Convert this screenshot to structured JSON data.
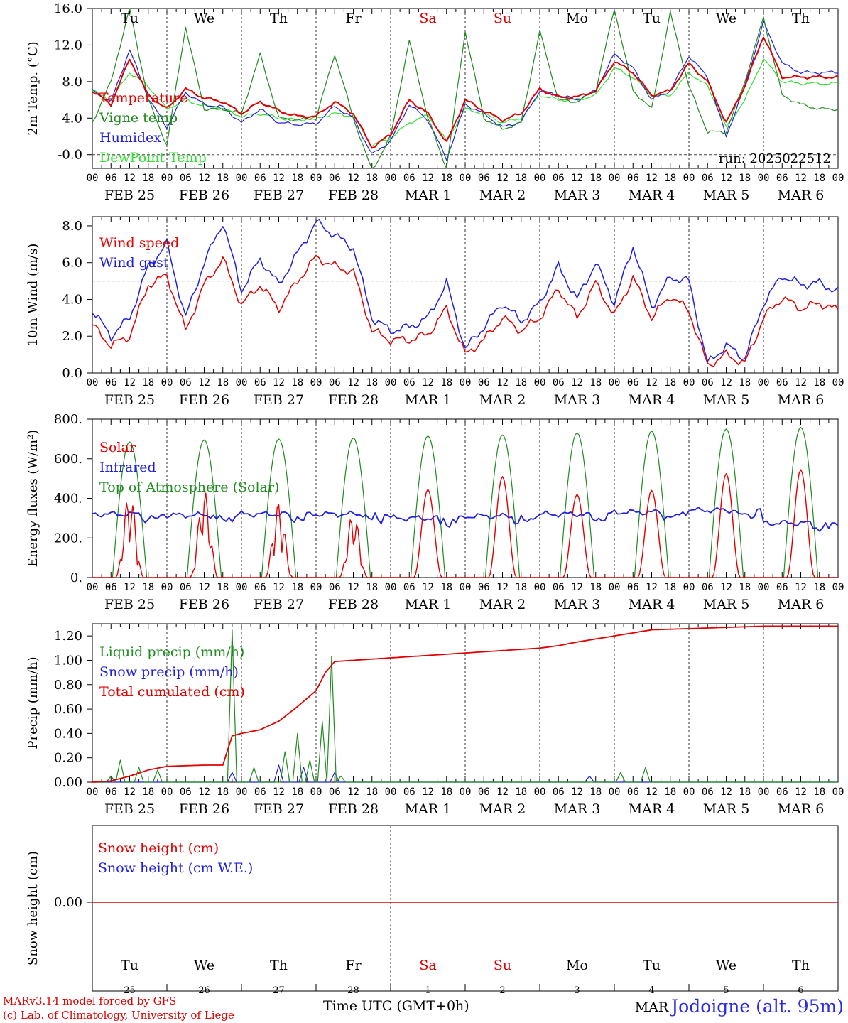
{
  "footer": {
    "model_line": "MARv3.14 model forced by GFS",
    "credit_line": "(c) Lab. of Climatology, University of Liege",
    "time_axis_label": "Time UTC (GMT+0h)",
    "location": "Jodoigne (alt. 95m)",
    "month_overlay": "MAR"
  },
  "run_label": "run: 2025022512",
  "colors": {
    "red": "#e00000",
    "green": "#1f8a1f",
    "blue": "#2020e0",
    "lime": "#33e033",
    "weekend": "#e00000"
  },
  "days": {
    "weekdays": [
      "Tu",
      "We",
      "Th",
      "Fr",
      "Sa",
      "Su",
      "Mo",
      "Tu",
      "We",
      "Th"
    ],
    "weekend_index": [
      4,
      5
    ],
    "dates": [
      "FEB  25",
      "FEB  26",
      "FEB  27",
      "FEB  28",
      "MAR   1",
      "MAR   2",
      "MAR   3",
      "MAR   4",
      "MAR   5",
      "MAR   6"
    ],
    "day_numbers": [
      "25",
      "26",
      "27",
      "28",
      "1",
      "2",
      "3",
      "4",
      "5",
      "6"
    ],
    "hour_ticks": [
      "00",
      "06",
      "12",
      "18"
    ],
    "final_tick": "00"
  },
  "chart_data": [
    {
      "type": "line",
      "ylabel": "2m Temp. (°C)",
      "ylim": [
        -1.5,
        16.0
      ],
      "yticks": [
        "-0.0",
        "4.0",
        "8.0",
        "12.0",
        "16.0"
      ],
      "ytick_values": [
        0,
        4,
        8,
        12,
        16
      ],
      "ref_line": 0,
      "x_hours": [
        0,
        6,
        12,
        18,
        24,
        30,
        36,
        42,
        48,
        54,
        60,
        66,
        72,
        78,
        84,
        90,
        96,
        102,
        108,
        114,
        120,
        126,
        132,
        138,
        144,
        150,
        156,
        162,
        168,
        174,
        180,
        186,
        192,
        198,
        204,
        210,
        216,
        222,
        228,
        234,
        240
      ],
      "series": [
        {
          "name": "Temperature",
          "color": "red",
          "values": [
            7.0,
            5.5,
            10.5,
            6.5,
            5.0,
            7.2,
            6.2,
            5.8,
            4.5,
            5.8,
            4.8,
            4.2,
            4.2,
            5.8,
            4.5,
            0.8,
            2.2,
            6.0,
            4.5,
            1.3,
            6.0,
            4.8,
            3.8,
            4.5,
            7.2,
            6.3,
            6.3,
            7.0,
            10.2,
            9.0,
            6.5,
            7.0,
            10.0,
            8.0,
            3.5,
            7.5,
            13.0,
            8.5,
            8.5,
            8.5,
            8.5
          ]
        },
        {
          "name": "Vigne temp",
          "color": "green",
          "values": [
            3.5,
            8.0,
            16.0,
            6.0,
            1.0,
            14.0,
            5.0,
            5.0,
            4.5,
            11.0,
            4.0,
            3.8,
            4.0,
            11.0,
            4.0,
            -1.8,
            2.0,
            12.5,
            4.0,
            -1.5,
            13.5,
            4.0,
            2.8,
            3.5,
            13.5,
            6.0,
            5.8,
            7.0,
            16.0,
            7.0,
            5.0,
            15.5,
            7.5,
            2.5,
            2.5,
            8.0,
            15.0,
            6.5,
            5.5,
            5.0,
            5.0
          ]
        },
        {
          "name": "Humidex",
          "color": "blue",
          "values": [
            7.0,
            5.8,
            11.5,
            6.2,
            3.0,
            6.8,
            5.5,
            5.2,
            3.5,
            5.0,
            3.5,
            3.3,
            3.4,
            5.3,
            4.0,
            0.0,
            1.5,
            5.5,
            3.8,
            -0.5,
            5.5,
            4.5,
            3.0,
            3.6,
            7.0,
            6.5,
            6.0,
            7.0,
            11.0,
            9.5,
            6.0,
            7.0,
            10.8,
            8.5,
            2.0,
            7.5,
            14.5,
            10.0,
            9.0,
            9.0,
            9.0
          ]
        },
        {
          "name": "DewPoint Temp",
          "color": "lime",
          "values": [
            7.0,
            6.0,
            9.0,
            7.5,
            5.0,
            6.0,
            5.3,
            5.0,
            4.2,
            4.5,
            4.0,
            3.8,
            4.0,
            4.5,
            4.2,
            1.0,
            1.8,
            3.5,
            4.3,
            1.5,
            5.0,
            4.5,
            3.5,
            4.0,
            6.5,
            6.0,
            6.0,
            6.5,
            9.5,
            8.5,
            6.5,
            6.5,
            9.0,
            7.5,
            3.0,
            6.0,
            10.5,
            8.0,
            7.8,
            7.8,
            7.8
          ]
        }
      ]
    },
    {
      "type": "line",
      "ylabel": "10m Wind (m/s)",
      "ylim": [
        0,
        8.5
      ],
      "yticks": [
        "0.0",
        "2.0",
        "4.0",
        "6.0",
        "8.0"
      ],
      "ytick_values": [
        0,
        2,
        4,
        6,
        8
      ],
      "ref_line": 5,
      "x_hours": [
        0,
        6,
        12,
        18,
        24,
        30,
        36,
        42,
        48,
        54,
        60,
        66,
        72,
        78,
        84,
        90,
        96,
        102,
        108,
        114,
        120,
        126,
        132,
        138,
        144,
        150,
        156,
        162,
        168,
        174,
        180,
        186,
        192,
        198,
        204,
        210,
        216,
        222,
        228,
        234,
        240
      ],
      "series": [
        {
          "name": "Wind speed",
          "color": "red",
          "values": [
            2.6,
            1.5,
            2.0,
            4.8,
            5.3,
            2.3,
            4.8,
            6.2,
            3.7,
            4.8,
            3.5,
            5.0,
            6.3,
            5.8,
            5.5,
            2.3,
            1.8,
            1.8,
            2.1,
            3.5,
            1.0,
            1.8,
            3.0,
            2.3,
            3.0,
            4.6,
            3.0,
            4.9,
            3.1,
            5.2,
            3.0,
            4.2,
            3.4,
            0.4,
            1.0,
            0.5,
            3.0,
            4.1,
            3.5,
            3.8,
            3.4
          ]
        },
        {
          "name": "Wind gust",
          "color": "blue",
          "values": [
            3.4,
            2.0,
            3.0,
            5.8,
            7.0,
            3.0,
            6.0,
            8.2,
            4.5,
            6.2,
            4.8,
            6.5,
            8.2,
            7.5,
            6.8,
            3.0,
            2.3,
            2.5,
            3.0,
            4.9,
            1.3,
            2.5,
            3.8,
            2.8,
            3.8,
            5.8,
            4.0,
            6.0,
            3.8,
            6.9,
            3.6,
            5.2,
            5.0,
            0.5,
            1.5,
            0.8,
            3.8,
            5.3,
            4.8,
            4.9,
            4.4
          ]
        }
      ]
    },
    {
      "type": "line",
      "ylabel": "Energy fluxes (W/m²)",
      "ylim": [
        0,
        800
      ],
      "yticks": [
        "0.",
        "200.",
        "400.",
        "600.",
        "800."
      ],
      "ytick_values": [
        0,
        200,
        400,
        600,
        800
      ],
      "ref_line": null,
      "series": [
        {
          "name": "Solar",
          "color": "red",
          "peaks": [
            430,
            440,
            380,
            330,
            445,
            510,
            420,
            440,
            525,
            545
          ]
        },
        {
          "name": "Infrared",
          "color": "blue",
          "values_daily": [
            320,
            315,
            320,
            320,
            300,
            310,
            320,
            330,
            340,
            275
          ]
        },
        {
          "name": "Top of Atmosphere (Solar)",
          "color": "green",
          "peaks": [
            685,
            695,
            700,
            705,
            715,
            720,
            730,
            740,
            750,
            758
          ]
        }
      ]
    },
    {
      "type": "line",
      "ylabel": "Precip (mm/h)",
      "ylim": [
        0,
        1.3
      ],
      "yticks": [
        "0.00",
        "0.20",
        "0.40",
        "0.60",
        "0.80",
        "1.00",
        "1.20"
      ],
      "ytick_values": [
        0,
        0.2,
        0.4,
        0.6,
        0.8,
        1.0,
        1.2
      ],
      "ref_line": null,
      "series": [
        {
          "name": "Liquid precip (mm/h)",
          "color": "green",
          "spikes": [
            [
              6,
              0.05
            ],
            [
              9,
              0.18
            ],
            [
              15,
              0.12
            ],
            [
              21,
              0.1
            ],
            [
              45,
              1.25
            ],
            [
              52,
              0.12
            ],
            [
              62,
              0.25
            ],
            [
              66,
              0.4
            ],
            [
              70,
              0.18
            ],
            [
              74,
              0.5
            ],
            [
              77,
              1.03
            ],
            [
              80,
              0.05
            ],
            [
              170,
              0.08
            ],
            [
              178,
              0.12
            ]
          ]
        },
        {
          "name": "Snow precip (mm/h)",
          "color": "blue",
          "spikes": [
            [
              45,
              0.08
            ],
            [
              60,
              0.14
            ],
            [
              68,
              0.12
            ],
            [
              78,
              0.08
            ],
            [
              160,
              0.05
            ]
          ]
        },
        {
          "name": "Total cumulated (cm)",
          "color": "red",
          "x_hours": [
            0,
            6,
            12,
            18,
            24,
            36,
            42,
            45,
            48,
            54,
            60,
            66,
            72,
            75,
            78,
            84,
            96,
            108,
            120,
            132,
            144,
            150,
            156,
            168,
            180,
            192,
            204,
            216,
            240
          ],
          "values": [
            0.0,
            0.01,
            0.05,
            0.1,
            0.13,
            0.14,
            0.14,
            0.38,
            0.4,
            0.43,
            0.5,
            0.62,
            0.75,
            0.9,
            0.99,
            1.0,
            1.02,
            1.04,
            1.06,
            1.08,
            1.1,
            1.12,
            1.15,
            1.2,
            1.25,
            1.26,
            1.27,
            1.28,
            1.28
          ]
        }
      ]
    },
    {
      "type": "line",
      "ylabel": "Snow height (cm)",
      "ytick_label": "0.00",
      "series": [
        {
          "name": "Snow height (cm)",
          "color": "red",
          "values": [
            0,
            0
          ]
        },
        {
          "name": "Snow height (cm W.E.)",
          "color": "blue",
          "values": [
            0,
            0
          ]
        }
      ]
    }
  ]
}
